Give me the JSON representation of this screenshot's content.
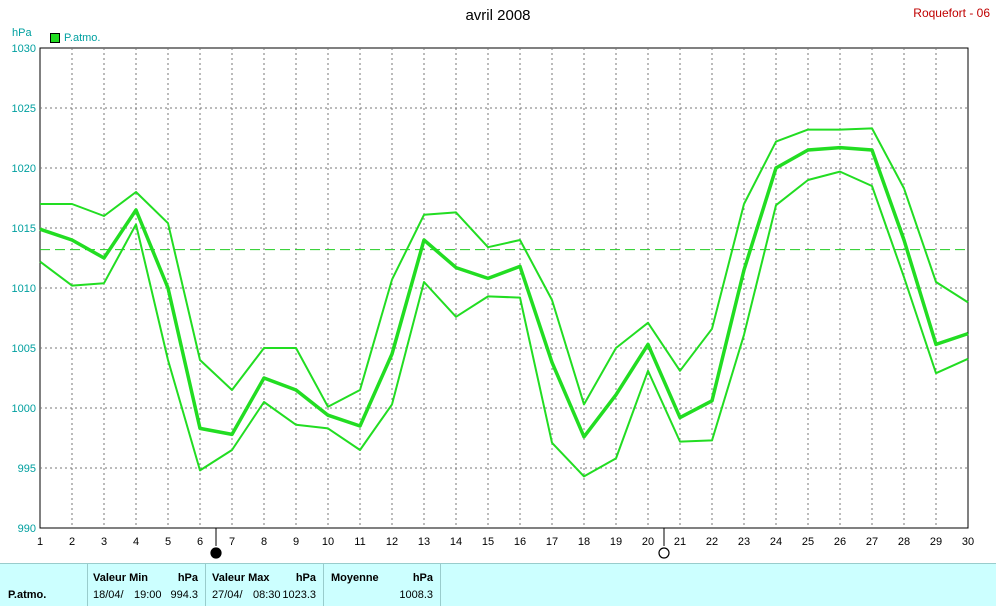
{
  "header": {
    "title": "avril 2008",
    "station": "Roquefort - 06",
    "unit": "hPa",
    "legend_label": "P.atmo."
  },
  "chart_data": {
    "type": "line",
    "title": "avril 2008",
    "ylabel": "hPa",
    "ylim": [
      990,
      1030
    ],
    "yticks": [
      990,
      995,
      1000,
      1005,
      1010,
      1015,
      1020,
      1025,
      1030
    ],
    "x": [
      1,
      2,
      3,
      4,
      5,
      6,
      7,
      8,
      9,
      10,
      11,
      12,
      13,
      14,
      15,
      16,
      17,
      18,
      19,
      20,
      21,
      22,
      23,
      24,
      25,
      26,
      27,
      28,
      29,
      30
    ],
    "grid": true,
    "reference_line": 1013.2,
    "moon_phases": [
      {
        "day": 6,
        "phase": "new-moon"
      },
      {
        "day": 20,
        "phase": "full-moon"
      }
    ],
    "series": [
      {
        "name": "max",
        "values": [
          1017.0,
          1017.0,
          1016.0,
          1018.0,
          1015.4,
          1004.0,
          1001.5,
          1005.0,
          1005.0,
          1000.1,
          1001.5,
          1010.7,
          1016.1,
          1016.3,
          1013.4,
          1014.0,
          1009.0,
          1000.3,
          1005.0,
          1007.1,
          1003.1,
          1006.6,
          1017.0,
          1022.2,
          1023.2,
          1023.2,
          1023.3,
          1018.3,
          1010.5,
          1008.8
        ],
        "width": "thin"
      },
      {
        "name": "P.atmo.",
        "values": [
          1014.9,
          1014.0,
          1012.5,
          1016.5,
          1010.0,
          998.3,
          997.8,
          1002.5,
          1001.5,
          999.4,
          998.5,
          1004.5,
          1014.0,
          1011.7,
          1010.8,
          1011.8,
          1003.8,
          997.6,
          1001.1,
          1005.3,
          999.2,
          1000.6,
          1011.5,
          1020.0,
          1021.5,
          1021.7,
          1021.5,
          1014.0,
          1005.3,
          1006.2
        ],
        "width": "thick"
      },
      {
        "name": "min",
        "values": [
          1012.2,
          1010.2,
          1010.4,
          1015.3,
          1004.0,
          994.8,
          996.5,
          1000.5,
          998.6,
          998.3,
          996.5,
          1000.3,
          1010.5,
          1007.6,
          1009.3,
          1009.2,
          997.1,
          994.3,
          995.8,
          1003.1,
          997.2,
          997.3,
          1006.1,
          1016.9,
          1019.0,
          1019.7,
          1018.5,
          1010.9,
          1002.9,
          1004.1
        ],
        "width": "thin"
      }
    ],
    "color": "#22dd22"
  },
  "summary": {
    "row_label": "P.atmo.",
    "min": {
      "header": "Valeur Min",
      "unit": "hPa",
      "date": "18/04/",
      "time": "19:00",
      "value": "994.3"
    },
    "max": {
      "header": "Valeur Max",
      "unit": "hPa",
      "date": "27/04/",
      "time": "08:30",
      "value": "1023.3"
    },
    "avg": {
      "header": "Moyenne",
      "unit": "hPa",
      "value": "1008.3"
    }
  }
}
